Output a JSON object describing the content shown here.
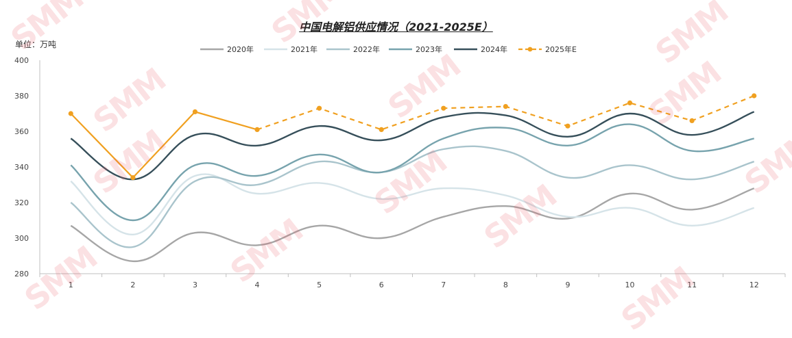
{
  "unit_label": "单位：万吨",
  "watermark": "SMM",
  "chart_data": {
    "type": "line",
    "title": "中国电解铝供应情况（2021-2025E）",
    "xlabel": "",
    "ylabel": "",
    "ylim": [
      280,
      400
    ],
    "yticks": [
      280,
      300,
      320,
      340,
      360,
      380,
      400
    ],
    "categories": [
      "1",
      "2",
      "3",
      "4",
      "5",
      "6",
      "7",
      "8",
      "9",
      "10",
      "11",
      "12"
    ],
    "legend_position": "top",
    "series": [
      {
        "name": "2020年",
        "color": "#a6a6a6",
        "dashed": false,
        "smooth": true,
        "markers": false,
        "values": [
          307,
          287,
          303,
          296,
          307,
          300,
          312,
          318,
          311,
          325,
          316,
          328
        ]
      },
      {
        "name": "2021年",
        "color": "#d5e3e8",
        "dashed": false,
        "smooth": true,
        "markers": false,
        "values": [
          332,
          302,
          335,
          325,
          331,
          322,
          328,
          324,
          312,
          317,
          307,
          317
        ]
      },
      {
        "name": "2022年",
        "color": "#a9c4cc",
        "dashed": false,
        "smooth": true,
        "markers": false,
        "values": [
          320,
          295,
          332,
          330,
          343,
          337,
          350,
          349,
          334,
          341,
          333,
          343
        ]
      },
      {
        "name": "2023年",
        "color": "#77a3ad",
        "dashed": false,
        "smooth": true,
        "markers": false,
        "values": [
          341,
          310,
          341,
          335,
          347,
          337,
          356,
          362,
          352,
          364,
          349,
          356
        ]
      },
      {
        "name": "2024年",
        "color": "#364f5a",
        "dashed": false,
        "smooth": true,
        "markers": false,
        "values": [
          356,
          333,
          358,
          352,
          363,
          355,
          368,
          369,
          357,
          370,
          358,
          371
        ]
      },
      {
        "name": "2025年E",
        "color": "#f0a020",
        "dashed": true,
        "solid_until_index": 3,
        "smooth": false,
        "markers": true,
        "values": [
          370,
          334,
          371,
          361,
          373,
          361,
          373,
          374,
          363,
          376,
          366,
          380
        ]
      }
    ]
  }
}
